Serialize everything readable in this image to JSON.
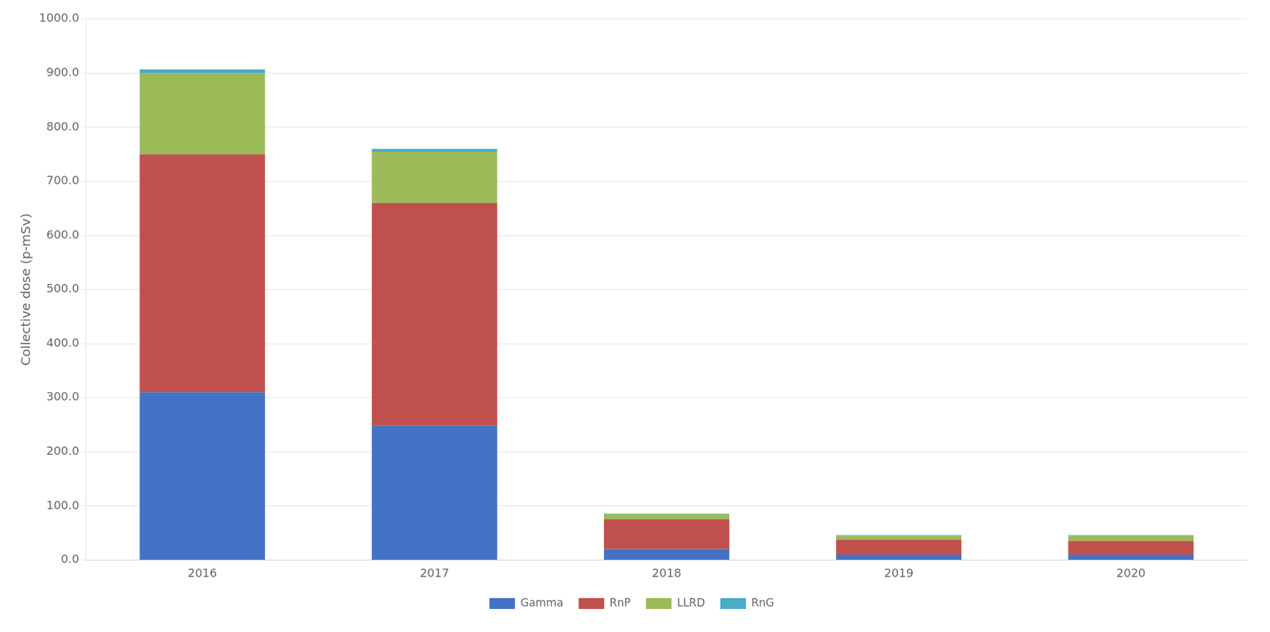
{
  "chart_data": {
    "type": "bar",
    "stacked": true,
    "categories": [
      "2016",
      "2017",
      "2018",
      "2019",
      "2020"
    ],
    "series": [
      {
        "name": "Gamma",
        "color": "#4472C4",
        "values": [
          310,
          248,
          20,
          10,
          10
        ]
      },
      {
        "name": "RnP",
        "color": "#C0504D",
        "values": [
          440,
          412,
          55,
          27,
          25
        ]
      },
      {
        "name": "LLRD",
        "color": "#9BBB59",
        "values": [
          150,
          95,
          10,
          8,
          10
        ]
      },
      {
        "name": "RnG",
        "color": "#4BACC6",
        "values": [
          7,
          5,
          1,
          1,
          1
        ]
      }
    ],
    "ylabel": "Collective dose (p-mSv)",
    "ylim": [
      0,
      1000
    ],
    "yticks": [
      {
        "value": 0,
        "label": "0.0"
      },
      {
        "value": 100,
        "label": "100.0"
      },
      {
        "value": 200,
        "label": "200.0"
      },
      {
        "value": 300,
        "label": "300.0"
      },
      {
        "value": 400,
        "label": "400.0"
      },
      {
        "value": 500,
        "label": "500.0"
      },
      {
        "value": 600,
        "label": "600.0"
      },
      {
        "value": 700,
        "label": "700.0"
      },
      {
        "value": 800,
        "label": "800.0"
      },
      {
        "value": 900,
        "label": "900.0"
      },
      {
        "value": 1000,
        "label": "1000.0"
      }
    ],
    "grid": true,
    "legend": "bottom"
  }
}
